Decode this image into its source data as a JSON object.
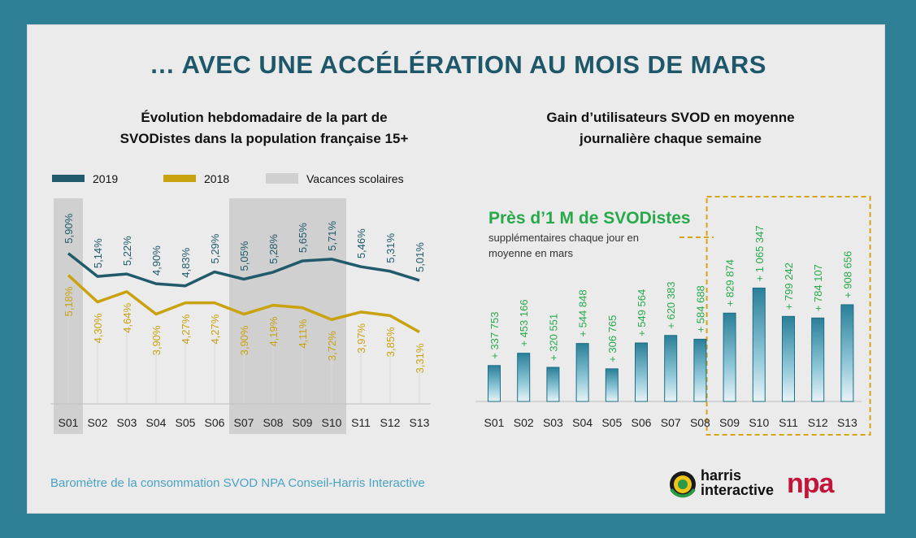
{
  "title": "… AVEC UNE ACCÉLÉRATION AU MOIS DE MARS",
  "left_chart": {
    "subtitle_line1": "Évolution hebdomadaire de la part de",
    "subtitle_line2": "SVODistes dans la population française 15+",
    "legend": {
      "s2019": "2019",
      "s2018": "2018",
      "vacances": "Vacances scolaires"
    }
  },
  "right_chart": {
    "subtitle_line1": "Gain d’utilisateurs SVOD en moyenne",
    "subtitle_line2": "journalière chaque semaine",
    "highlight_title": "Près d’1 M de SVODistes",
    "highlight_sub": "supplémentaires chaque jour en moyenne en mars"
  },
  "footer": "Baromètre de la consommation SVOD NPA Conseil-Harris Interactive",
  "logos": {
    "harris_line1": "harris",
    "harris_line2": "interactive",
    "npa": "npa"
  },
  "colors": {
    "s2019": "#215a6b",
    "s2018": "#c9a20f",
    "vacances": "#d0d0d0",
    "bars": "#2e8da8",
    "green": "#27a94a",
    "highlight_border": "#d6a419"
  },
  "chart_data": [
    {
      "type": "line",
      "title": "Évolution hebdomadaire de la part de SVODistes dans la population française 15+",
      "categories": [
        "S01",
        "S02",
        "S03",
        "S04",
        "S05",
        "S06",
        "S07",
        "S08",
        "S09",
        "S10",
        "S11",
        "S12",
        "S13"
      ],
      "series": [
        {
          "name": "2019",
          "values": [
            5.9,
            5.14,
            5.22,
            4.9,
            4.83,
            5.29,
            5.05,
            5.28,
            5.65,
            5.71,
            5.46,
            5.31,
            5.01
          ],
          "labels": [
            "5,90%",
            "5,14%",
            "5,22%",
            "4,90%",
            "4,83%",
            "5,29%",
            "5,05%",
            "5,28%",
            "5,65%",
            "5,71%",
            "5,46%",
            "5,31%",
            "5,01%"
          ]
        },
        {
          "name": "2018",
          "values": [
            5.18,
            4.3,
            4.64,
            3.9,
            4.27,
            4.27,
            3.9,
            4.19,
            4.11,
            3.72,
            3.97,
            3.85,
            3.31
          ],
          "labels": [
            "5,18%",
            "4,30%",
            "4,64%",
            "3,90%",
            "4,27%",
            "4,27%",
            "3,90%",
            "4,19%",
            "4,11%",
            "3,72%",
            "3,97%",
            "3,85%",
            "3,31%"
          ]
        }
      ],
      "shaded_categories": [
        "S01",
        "S07",
        "S08",
        "S09",
        "S10"
      ],
      "legend_position": "top"
    },
    {
      "type": "bar",
      "title": "Gain d’utilisateurs SVOD en moyenne journalière chaque semaine",
      "categories": [
        "S01",
        "S02",
        "S03",
        "S04",
        "S05",
        "S06",
        "S07",
        "S08",
        "S09",
        "S10",
        "S11",
        "S12",
        "S13"
      ],
      "values": [
        337753,
        453166,
        320551,
        544848,
        306765,
        549564,
        620383,
        584688,
        829874,
        1065347,
        799242,
        784107,
        908656
      ],
      "labels": [
        "+ 337 753",
        "+ 453 166",
        "+ 320 551",
        "+ 544 848",
        "+ 306 765",
        "+ 549 564",
        "+ 620 383",
        "+ 584 688",
        "+ 829 874",
        "+ 1 065 347",
        "+ 799 242",
        "+ 784 107",
        "+ 908 656"
      ],
      "highlighted_categories": [
        "S09",
        "S10",
        "S11",
        "S12",
        "S13"
      ]
    }
  ]
}
